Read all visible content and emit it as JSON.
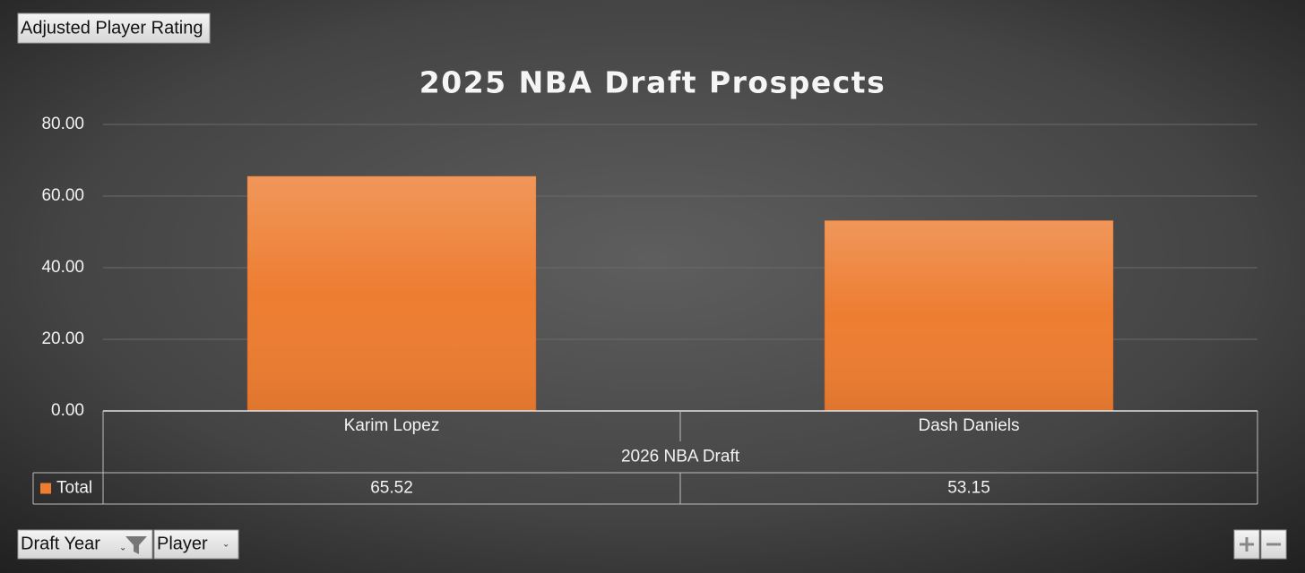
{
  "chart_data": {
    "type": "bar",
    "title": "2025 NBA Draft Prospects",
    "field_buttons": {
      "value_field": "Adjusted Player Rating",
      "axis_fields": [
        "Draft Year",
        "Player"
      ]
    },
    "categories": [
      "Karim Lopez",
      "Dash Daniels"
    ],
    "category_group": "2026 NBA Draft",
    "series": [
      {
        "name": "Total",
        "color": "#ed7d31",
        "values": [
          65.52,
          53.15
        ]
      }
    ],
    "ylim": [
      0,
      80
    ],
    "yticks": [
      {
        "value": 0,
        "label": "0.00"
      },
      {
        "value": 20,
        "label": "20.00"
      },
      {
        "value": 40,
        "label": "40.00"
      },
      {
        "value": 60,
        "label": "60.00"
      },
      {
        "value": 80,
        "label": "80.00"
      }
    ],
    "grid": true,
    "data_table": true
  }
}
